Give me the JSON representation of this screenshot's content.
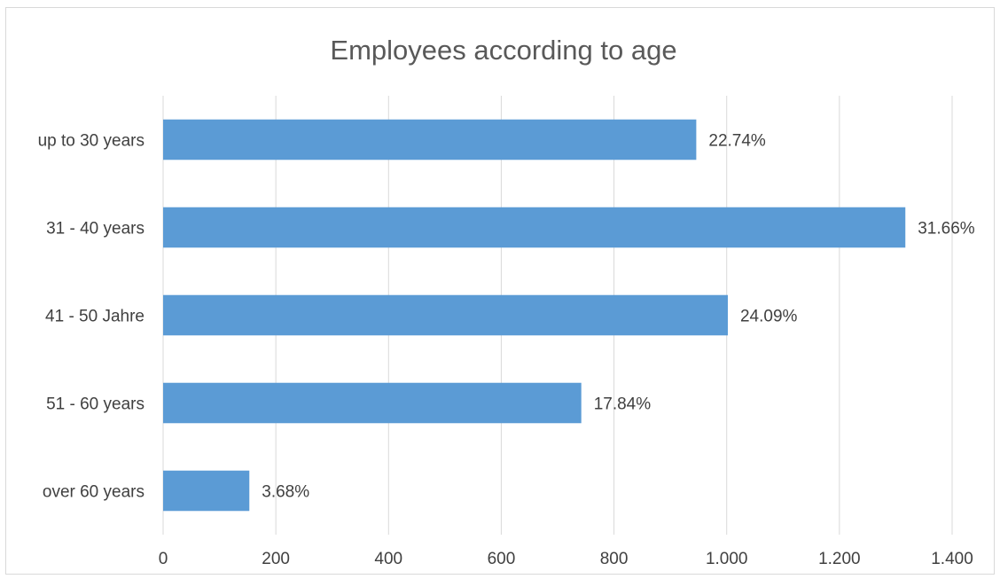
{
  "colors": {
    "bar": "#5b9bd5",
    "gridline": "#d9d9d9",
    "text": "#404040",
    "title": "#595959"
  },
  "chart_data": {
    "type": "bar",
    "orientation": "horizontal",
    "title": "Employees according to age",
    "xlabel": "",
    "ylabel": "",
    "categories": [
      "up to 30 years",
      "31 - 40 years",
      "41 - 50 Jahre",
      "51 - 60 years",
      "over 60 years"
    ],
    "values": [
      946,
      1317,
      1002,
      742,
      153
    ],
    "data_labels": [
      "22.74%",
      "31.66%",
      "24.09%",
      "17.84%",
      "3.68%"
    ],
    "xlim": [
      0,
      1400
    ],
    "xticks": [
      0,
      200,
      400,
      600,
      800,
      1000,
      1200,
      1400
    ],
    "xtick_labels": [
      "0",
      "200",
      "400",
      "600",
      "800",
      "1.000",
      "1.200",
      "1.400"
    ],
    "grid": true,
    "legend": "none"
  }
}
